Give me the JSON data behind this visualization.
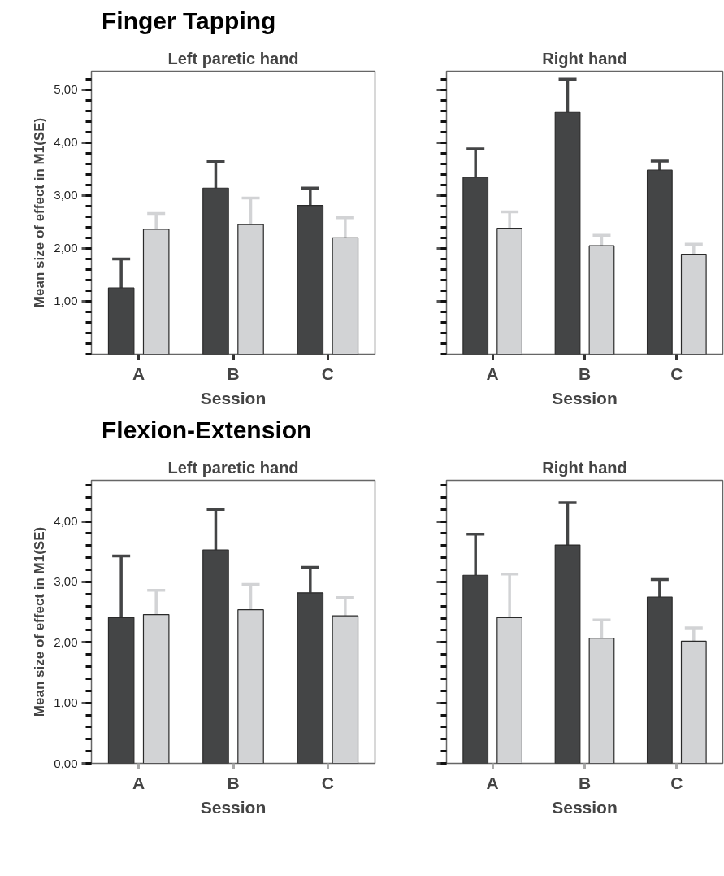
{
  "chart_data": [
    {
      "type": "bar",
      "title": "Finger Tapping",
      "subtitle": "Left paretic hand",
      "xlabel": "Session",
      "ylabel": "Mean size of effect in M1(SE)",
      "categories": [
        "A",
        "B",
        "C"
      ],
      "ylim": [
        0,
        5.35
      ],
      "yticks": [
        {
          "value": 1,
          "label": "1,00"
        },
        {
          "value": 2,
          "label": "2,00"
        },
        {
          "value": 3,
          "label": "3,00"
        },
        {
          "value": 4,
          "label": "4,00"
        },
        {
          "value": 5,
          "label": "5,00"
        }
      ],
      "series": [
        {
          "color": "#444546",
          "values": [
            1.25,
            3.14,
            2.81
          ],
          "errors": [
            [
              1.25,
              1.8
            ],
            [
              3.14,
              3.64
            ],
            [
              2.81,
              3.14
            ]
          ]
        },
        {
          "color": "#d2d3d5",
          "values": [
            2.36,
            2.45,
            2.2
          ],
          "errors": [
            [
              2.36,
              2.66
            ],
            [
              2.45,
              2.95
            ],
            [
              2.2,
              2.58
            ]
          ]
        }
      ]
    },
    {
      "type": "bar",
      "subtitle": "Right hand",
      "xlabel": "Session",
      "categories": [
        "A",
        "B",
        "C"
      ],
      "ylim": [
        0,
        5.35
      ],
      "tick_labels": "x",
      "yticks": [
        {
          "value": 1,
          "label": null
        },
        {
          "value": 2,
          "label": null
        },
        {
          "value": 3,
          "label": null
        },
        {
          "value": 4,
          "label": null
        },
        {
          "value": 5,
          "label": null
        }
      ],
      "series": [
        {
          "color": "#444546",
          "values": [
            3.34,
            4.57,
            3.48
          ],
          "errors": [
            [
              3.34,
              3.88
            ],
            [
              4.57,
              5.2
            ],
            [
              3.48,
              3.65
            ]
          ]
        },
        {
          "color": "#d2d3d5",
          "values": [
            2.38,
            2.05,
            1.89
          ],
          "errors": [
            [
              2.38,
              2.69
            ],
            [
              2.05,
              2.25
            ],
            [
              1.89,
              2.08
            ]
          ]
        }
      ]
    },
    {
      "type": "bar",
      "title": "Flexion-Extension",
      "subtitle": "Left paretic hand",
      "xlabel": "Session",
      "ylabel": "Mean size of effect in M1(SE)",
      "categories": [
        "A",
        "B",
        "C"
      ],
      "ylim": [
        0,
        4.68
      ],
      "yticks": [
        {
          "value": 0,
          "label": "0,00"
        },
        {
          "value": 1,
          "label": "1,00"
        },
        {
          "value": 2,
          "label": "2,00"
        },
        {
          "value": 3,
          "label": "3,00"
        },
        {
          "value": 4,
          "label": "4,00"
        }
      ],
      "series": [
        {
          "color": "#444546",
          "values": [
            2.41,
            3.53,
            2.82
          ],
          "errors": [
            [
              2.41,
              3.43
            ],
            [
              3.53,
              4.2
            ],
            [
              2.82,
              3.24
            ]
          ]
        },
        {
          "color": "#d2d3d5",
          "values": [
            2.46,
            2.54,
            2.44
          ],
          "errors": [
            [
              2.46,
              2.86
            ],
            [
              2.54,
              2.96
            ],
            [
              2.44,
              2.74
            ]
          ]
        }
      ]
    },
    {
      "type": "bar",
      "subtitle": "Right hand",
      "xlabel": "Session",
      "categories": [
        "A",
        "B",
        "C"
      ],
      "ylim": [
        0,
        4.68
      ],
      "tick_labels": "x",
      "yticks": [
        {
          "value": 0,
          "label": null
        },
        {
          "value": 1,
          "label": null
        },
        {
          "value": 2,
          "label": null
        },
        {
          "value": 3,
          "label": null
        },
        {
          "value": 4,
          "label": null
        }
      ],
      "series": [
        {
          "color": "#444546",
          "values": [
            3.11,
            3.61,
            2.75
          ],
          "errors": [
            [
              3.11,
              3.79
            ],
            [
              3.61,
              4.31
            ],
            [
              2.75,
              3.04
            ]
          ]
        },
        {
          "color": "#d2d3d5",
          "values": [
            2.41,
            2.07,
            2.02
          ],
          "errors": [
            [
              2.41,
              3.13
            ],
            [
              2.07,
              2.37
            ],
            [
              2.02,
              2.24
            ]
          ]
        }
      ]
    }
  ]
}
